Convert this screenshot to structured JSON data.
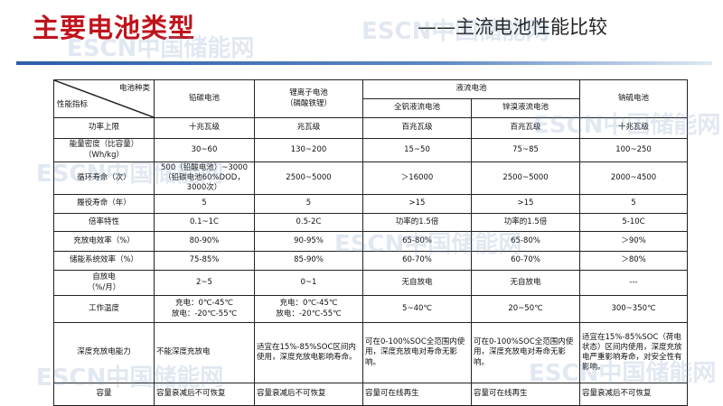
{
  "title": "主要电池类型",
  "subtitle": "——主流电池性能比较",
  "watermark": "ESCN中国储能网",
  "table": {
    "corner_top": "电池种类",
    "corner_bottom": "性能指标",
    "headers": {
      "lead_carbon": "铅碳电池",
      "li_ion": "锂离子电池\n（磷酸铁锂）",
      "flow": "液流电池",
      "vanadium": "全钒液流电池",
      "zinc_bromine": "锌溴液流电池",
      "nas": "钠硫电池"
    },
    "rows": [
      {
        "label": "功率上限",
        "cells": [
          "十兆瓦级",
          "兆瓦级",
          "百兆瓦级",
          "百兆瓦级",
          "十兆瓦级"
        ]
      },
      {
        "label": "能量密度（比容量）\n（Wh/kg）",
        "cells": [
          "30~60",
          "130~200",
          "15~50",
          "75~85",
          "100~250"
        ]
      },
      {
        "label": "循环寿命（次）",
        "cells": [
          "500（铅酸电池）~3000\n（铅碳电池60%DOD，\n3000次）",
          "2500~5000",
          "＞16000",
          "2500~5000",
          "2000~4500"
        ]
      },
      {
        "label": "履役寿命（年）",
        "cells": [
          "5",
          "5",
          ">15",
          ">15",
          "5"
        ]
      },
      {
        "label": "倍率特性",
        "cells": [
          "0.1~1C",
          "0.5-2C",
          "功率的1.5倍",
          "功率的1.5倍",
          "5-10C"
        ]
      },
      {
        "label": "充放电效率（%）",
        "cells": [
          "80-90%",
          "90-95%",
          "65-80%",
          "65-80%",
          "＞90%"
        ]
      },
      {
        "label": "储能系统效率（%）",
        "cells": [
          "75-85%",
          "85-90%",
          "60-70%",
          "60-70%",
          "＞80%"
        ]
      },
      {
        "label": "自放电\n（%/月）",
        "cells": [
          "2~5",
          "0~1",
          "无自放电",
          "无自放电",
          "---"
        ]
      },
      {
        "label": "工作温度",
        "cells": [
          "充电：0℃-45℃\n放电：-20℃-55℃",
          "充电：0℃-45℃\n放电：-20℃-55℃",
          "5~40℃",
          "20~50℃",
          "300~350℃"
        ]
      },
      {
        "label": "深度充放电能力",
        "cells": [
          "不能深度充放电",
          "适宜在15%-85%SOC区间内使用，深度充放电影响寿命。",
          "可在0-100%SOC全范围内使用，深度充放电对寿命无影响。",
          "可在0-100%SOC全范围内使用，深度充放电对寿命无影响。",
          "适宜在15%-85%SOC（荷电状态）区间内使用，深度充放电严重影响寿命，对安全性有影响。"
        ]
      },
      {
        "label": "容量",
        "cells": [
          "容量衰减后不可恢复",
          "容量衰减后不可恢复",
          "容量可在线再生",
          "容量可在线再生",
          "容量衰减后不可恢复"
        ]
      }
    ]
  }
}
